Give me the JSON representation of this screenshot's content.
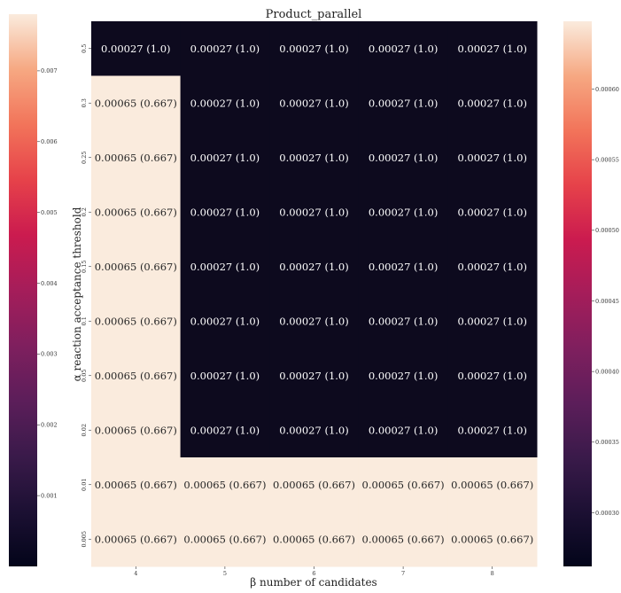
{
  "chart_data": {
    "type": "heatmap",
    "title": "Product_parallel",
    "xlabel": "β number of candidates",
    "ylabel": "α reaction acceptance threshold",
    "x_categories": [
      "4",
      "5",
      "6",
      "7",
      "8"
    ],
    "y_categories": [
      "0.5",
      "0.3",
      "0.25",
      "0.2",
      "0.15",
      "0.1",
      "0.05",
      "0.02",
      "0.01",
      "0.005"
    ],
    "values": [
      [
        0.00027,
        0.00027,
        0.00027,
        0.00027,
        0.00027
      ],
      [
        0.00065,
        0.00027,
        0.00027,
        0.00027,
        0.00027
      ],
      [
        0.00065,
        0.00027,
        0.00027,
        0.00027,
        0.00027
      ],
      [
        0.00065,
        0.00027,
        0.00027,
        0.00027,
        0.00027
      ],
      [
        0.00065,
        0.00027,
        0.00027,
        0.00027,
        0.00027
      ],
      [
        0.00065,
        0.00027,
        0.00027,
        0.00027,
        0.00027
      ],
      [
        0.00065,
        0.00027,
        0.00027,
        0.00027,
        0.00027
      ],
      [
        0.00065,
        0.00027,
        0.00027,
        0.00027,
        0.00027
      ],
      [
        0.00065,
        0.00065,
        0.00065,
        0.00065,
        0.00065
      ],
      [
        0.00065,
        0.00065,
        0.00065,
        0.00065,
        0.00065
      ]
    ],
    "annotations": [
      [
        "0.00027 (1.0)",
        "0.00027 (1.0)",
        "0.00027 (1.0)",
        "0.00027 (1.0)",
        "0.00027 (1.0)"
      ],
      [
        "0.00065 (0.667)",
        "0.00027 (1.0)",
        "0.00027 (1.0)",
        "0.00027 (1.0)",
        "0.00027 (1.0)"
      ],
      [
        "0.00065 (0.667)",
        "0.00027 (1.0)",
        "0.00027 (1.0)",
        "0.00027 (1.0)",
        "0.00027 (1.0)"
      ],
      [
        "0.00065 (0.667)",
        "0.00027 (1.0)",
        "0.00027 (1.0)",
        "0.00027 (1.0)",
        "0.00027 (1.0)"
      ],
      [
        "0.00065 (0.667)",
        "0.00027 (1.0)",
        "0.00027 (1.0)",
        "0.00027 (1.0)",
        "0.00027 (1.0)"
      ],
      [
        "0.00065 (0.667)",
        "0.00027 (1.0)",
        "0.00027 (1.0)",
        "0.00027 (1.0)",
        "0.00027 (1.0)"
      ],
      [
        "0.00065 (0.667)",
        "0.00027 (1.0)",
        "0.00027 (1.0)",
        "0.00027 (1.0)",
        "0.00027 (1.0)"
      ],
      [
        "0.00065 (0.667)",
        "0.00027 (1.0)",
        "0.00027 (1.0)",
        "0.00027 (1.0)",
        "0.00027 (1.0)"
      ],
      [
        "0.00065 (0.667)",
        "0.00065 (0.667)",
        "0.00065 (0.667)",
        "0.00065 (0.667)",
        "0.00065 (0.667)"
      ],
      [
        "0.00065 (0.667)",
        "0.00065 (0.667)",
        "0.00065 (0.667)",
        "0.00065 (0.667)",
        "0.00065 (0.667)"
      ]
    ],
    "color_range": [
      0.00027,
      0.00065
    ],
    "colormap": "rocket",
    "low_color": "#0d0a1e",
    "high_color": "#faebdd",
    "left_colorbar": {
      "range": [
        0.0,
        0.0078
      ],
      "ticks": [
        0.001,
        0.002,
        0.003,
        0.004,
        0.005,
        0.006,
        0.007
      ],
      "tick_labels": [
        "0.001",
        "0.002",
        "0.003",
        "0.004",
        "0.005",
        "0.006",
        "0.007"
      ]
    },
    "right_colorbar": {
      "range": [
        0.000262,
        0.000648
      ],
      "ticks": [
        0.0003,
        0.00035,
        0.0004,
        0.00045,
        0.0005,
        0.00055,
        0.0006
      ],
      "tick_labels": [
        "0.00030",
        "0.00035",
        "0.00040",
        "0.00045",
        "0.00050",
        "0.00055",
        "0.00060"
      ]
    }
  }
}
